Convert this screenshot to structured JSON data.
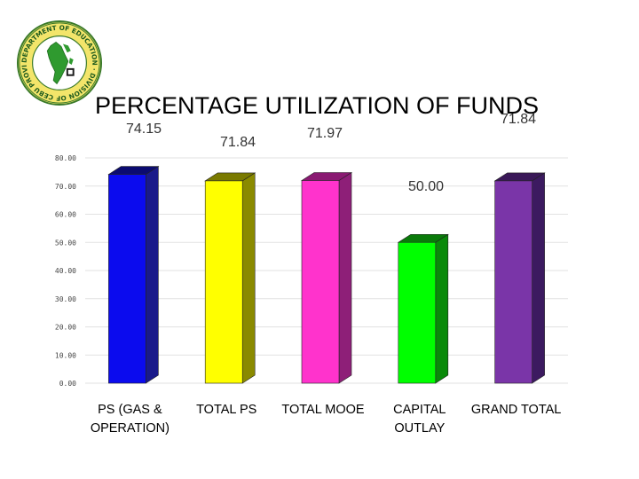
{
  "logo": {
    "ring_text": "DEPARTMENT OF EDUCATION · DIVISION OF CEBU PROVINCE"
  },
  "chart_data": {
    "type": "bar",
    "title": "PERCENTAGE UTILIZATION OF FUNDS",
    "categories": [
      "PS (GAS & OPERATION)",
      "TOTAL PS",
      "TOTAL MOOE",
      "CAPITAL OUTLAY",
      "GRAND TOTAL"
    ],
    "category_lines": [
      [
        "PS (GAS &",
        "OPERATION)"
      ],
      [
        "TOTAL PS"
      ],
      [
        "TOTAL MOOE"
      ],
      [
        "CAPITAL",
        "OUTLAY"
      ],
      [
        "GRAND TOTAL"
      ]
    ],
    "values": [
      74.15,
      71.84,
      71.97,
      50.0,
      71.84
    ],
    "data_labels": [
      "74.15",
      "71.84",
      "71.97",
      "50.00",
      "71.84"
    ],
    "colors": [
      "#0b0bee",
      "#ffff00",
      "#ff33cc",
      "#00ff00",
      "#7a35a8"
    ],
    "side_colors": [
      "#1a1a8a",
      "#8a8a00",
      "#8e1f78",
      "#0a8a0a",
      "#3c1a60"
    ],
    "top_colors": [
      "#0b0b70",
      "#7a7a00",
      "#8a1a72",
      "#0a7a0a",
      "#3a1858"
    ],
    "ylim": [
      0,
      80
    ],
    "yticks": [
      "0.00",
      "10.00",
      "20.00",
      "30.00",
      "40.00",
      "50.00",
      "60.00",
      "70.00",
      "80.00"
    ],
    "grid": true,
    "xlabel": "",
    "ylabel": ""
  }
}
